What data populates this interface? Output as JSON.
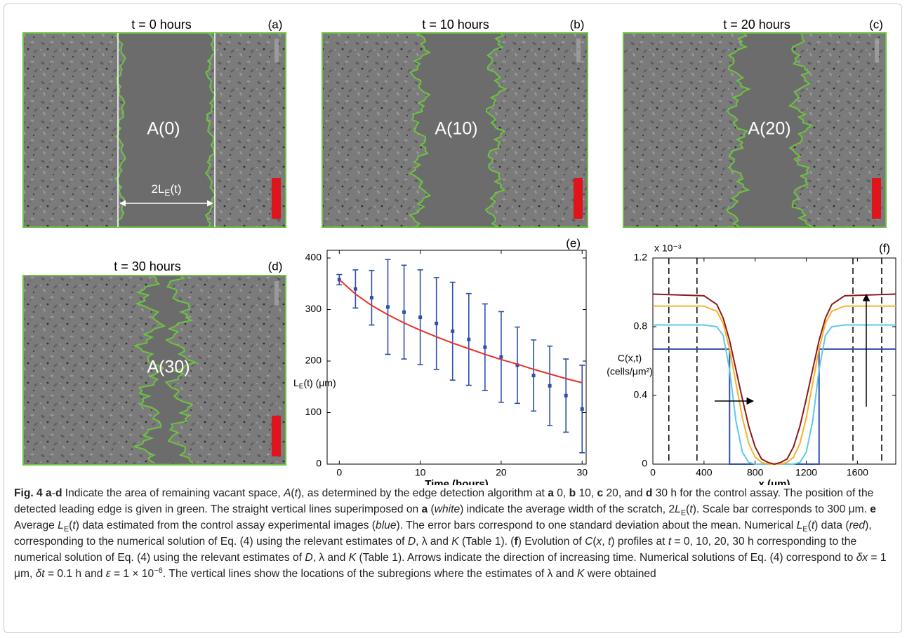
{
  "panels": [
    {
      "title": "t = 0 hours",
      "label": "(a)",
      "region": "A(0)",
      "width_label": "2L",
      "width_label_sub": "E",
      "width_label_end": "(t)"
    },
    {
      "title": "t = 10 hours",
      "label": "(b)",
      "region": "A(10)"
    },
    {
      "title": "t = 20 hours",
      "label": "(c)",
      "region": "A(20)"
    },
    {
      "title": "t = 30 hours",
      "label": "(d)",
      "region": "A(30)"
    }
  ],
  "chart_data": [
    {
      "type": "line",
      "title": "(e)",
      "x_label": "Time (hours)",
      "y_label": "L",
      "y_label_sub": "E",
      "y_label_end": "(t) (μm)",
      "x": [
        0,
        2,
        4,
        6,
        8,
        10,
        12,
        14,
        16,
        18,
        20,
        22,
        24,
        26,
        28,
        30
      ],
      "xlim": [
        -1.5,
        30.5
      ],
      "xticks": [
        0,
        10,
        20,
        30
      ],
      "ylim": [
        0,
        415
      ],
      "yticks": [
        0,
        100,
        200,
        300,
        400
      ],
      "series": [
        {
          "color": "#2f4fa8",
          "values": [
            358,
            340,
            323,
            305,
            295,
            285,
            273,
            258,
            242,
            227,
            208,
            192,
            172,
            152,
            133,
            107
          ],
          "errors": [
            10,
            37,
            53,
            92,
            91,
            92,
            89,
            95,
            89,
            84,
            88,
            74,
            69,
            77,
            71,
            85
          ]
        },
        {
          "color": "#e8312a",
          "values": [
            358,
            330,
            308,
            290,
            274,
            260,
            247,
            235,
            224,
            213,
            203,
            194,
            184,
            175,
            166,
            158
          ]
        }
      ]
    },
    {
      "type": "line",
      "title": "(f)",
      "x_label": "x (μm)",
      "y_label": [
        "C(x,t)",
        "(cells/μm²)"
      ],
      "y_multiplier": "x 10⁻³",
      "xlim": [
        0,
        1900
      ],
      "xticks": [
        0,
        400,
        800,
        1200,
        1600
      ],
      "ylim": [
        0,
        1.2
      ],
      "yticks": [
        0,
        0.4,
        0.8,
        1.2
      ],
      "vlines": [
        125,
        345,
        1565,
        1790
      ],
      "series": [
        {
          "color": "#2f4fa8",
          "x": [
            0,
            600,
            600,
            1300,
            1300,
            1900
          ],
          "values": [
            0.67,
            0.67,
            0,
            0,
            0.67,
            0.67
          ]
        },
        {
          "color": "#5ec8e6",
          "x": [
            0,
            400,
            500,
            550,
            600,
            650,
            700,
            750,
            800,
            850,
            900,
            950,
            1000,
            1050,
            1100,
            1150,
            1200,
            1250,
            1300,
            1350,
            1400,
            1500,
            1900
          ],
          "values": [
            0.81,
            0.81,
            0.8,
            0.75,
            0.55,
            0.25,
            0.07,
            0.01,
            0,
            0,
            0,
            0,
            0,
            0,
            0,
            0.01,
            0.07,
            0.25,
            0.55,
            0.75,
            0.8,
            0.81,
            0.81
          ]
        },
        {
          "color": "#f4b328",
          "x": [
            0,
            400,
            500,
            550,
            600,
            650,
            700,
            750,
            800,
            850,
            900,
            950,
            1000,
            1050,
            1100,
            1150,
            1200,
            1250,
            1300,
            1350,
            1400,
            1500,
            1900
          ],
          "values": [
            0.92,
            0.92,
            0.89,
            0.82,
            0.67,
            0.47,
            0.27,
            0.12,
            0.04,
            0.01,
            0,
            0,
            0,
            0.01,
            0.04,
            0.12,
            0.27,
            0.47,
            0.67,
            0.82,
            0.89,
            0.92,
            0.92
          ]
        },
        {
          "color": "#8b1a1a",
          "x": [
            0,
            400,
            500,
            550,
            600,
            650,
            700,
            750,
            800,
            850,
            900,
            950,
            1000,
            1050,
            1100,
            1150,
            1200,
            1250,
            1300,
            1350,
            1400,
            1500,
            1900
          ],
          "values": [
            0.99,
            0.98,
            0.93,
            0.85,
            0.72,
            0.55,
            0.38,
            0.22,
            0.1,
            0.03,
            0.01,
            0,
            0.01,
            0.03,
            0.1,
            0.22,
            0.38,
            0.55,
            0.72,
            0.85,
            0.93,
            0.98,
            0.99
          ]
        }
      ]
    }
  ],
  "caption": [
    {
      "bold": "Fig. 4 a"
    },
    "-",
    {
      "bold": "d"
    },
    " Indicate the area of remaining vacant space, ",
    {
      "italic": "A"
    },
    "(",
    {
      "italic": "t"
    },
    "), as determined by the edge detection algorithm at ",
    {
      "bold": "a"
    },
    " 0, ",
    {
      "bold": "b"
    },
    " 10, ",
    {
      "bold": "c"
    },
    " 20, and ",
    {
      "bold": "d"
    },
    " 30 h for the control assay. The position of the detected leading edge is given in green. The straight vertical lines superimposed on ",
    {
      "bold": "a"
    },
    " (",
    {
      "italic": "white"
    },
    ") indicate the average width of the scratch, 2",
    {
      "italic": "L"
    },
    {
      "sub": "E"
    },
    "(",
    {
      "italic": "t"
    },
    "). Scale bar corresponds to 300 μm. ",
    {
      "bold": "e"
    },
    " Average ",
    {
      "italic": "L"
    },
    {
      "sub": "E"
    },
    "(",
    {
      "italic": "t"
    },
    ") data estimated from the control assay experimental images (",
    {
      "italic": "blue"
    },
    "). The error bars correspond to one standard deviation about the mean. Numerical ",
    {
      "italic": "L"
    },
    {
      "sub": "E"
    },
    "(",
    {
      "italic": "t"
    },
    ") data (",
    {
      "italic": "red"
    },
    "), corresponding to the numerical solution of Eq. (4) using the relevant estimates of ",
    {
      "italic": "D"
    },
    ", λ and ",
    {
      "italic": "K"
    },
    " (Table 1). (",
    {
      "bold": "f"
    },
    ") Evolution of ",
    {
      "italic": "C"
    },
    "(",
    {
      "italic": "x"
    },
    ", ",
    {
      "italic": "t"
    },
    ") profiles at ",
    {
      "italic": "t"
    },
    " = 0, 10, 20, 30 h corresponding to the numerical solution of Eq. (4) using the relevant estimates of ",
    {
      "italic": "D"
    },
    ", λ and ",
    {
      "italic": "K"
    },
    " (Table 1). Arrows indicate the direction of increasing time. Numerical solutions of Eq. (4) correspond to ",
    {
      "italic": "δx"
    },
    " = 1 μm, ",
    {
      "italic": "δt"
    },
    " = 0.1 h and ",
    {
      "italic": "ε"
    },
    " = 1 × 10",
    {
      "sup": "−6"
    },
    ". The vertical lines show the locations of the subregions where the estimates of λ and ",
    {
      "italic": "K"
    },
    " were obtained"
  ]
}
